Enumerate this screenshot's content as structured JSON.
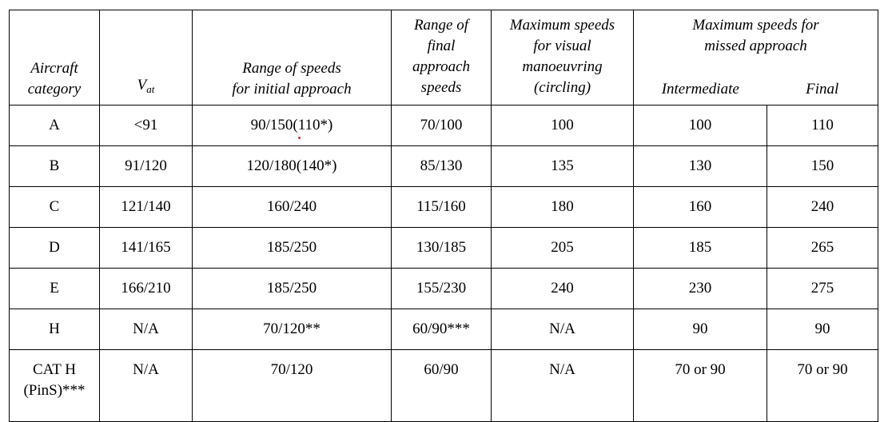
{
  "headers": {
    "aircraft_category": [
      "Aircraft",
      "category"
    ],
    "vat_main": "V",
    "vat_sub": "at",
    "initial_approach": [
      "Range of speeds",
      "for initial approach"
    ],
    "final_approach": [
      "Range of",
      "final",
      "approach",
      "speeds"
    ],
    "visual_manoeuvring": [
      "Maximum speeds",
      "for visual",
      "manoeuvring",
      "(circling)"
    ],
    "missed_approach": [
      "Maximum speeds for",
      "missed approach"
    ],
    "intermediate": "Intermediate",
    "final": "Final"
  },
  "rows": [
    {
      "category": "A",
      "vat": "<91",
      "initial": "90/150(110*)",
      "final_approach": "70/100",
      "visual": "100",
      "intermediate": "100",
      "final": "110"
    },
    {
      "category": "B",
      "vat": "91/120",
      "initial": "120/180(140*)",
      "final_approach": "85/130",
      "visual": "135",
      "intermediate": "130",
      "final": "150"
    },
    {
      "category": "C",
      "vat": "121/140",
      "initial": "160/240",
      "final_approach": "115/160",
      "visual": "180",
      "intermediate": "160",
      "final": "240"
    },
    {
      "category": "D",
      "vat": "141/165",
      "initial": "185/250",
      "final_approach": "130/185",
      "visual": "205",
      "intermediate": "185",
      "final": "265"
    },
    {
      "category": "E",
      "vat": "166/210",
      "initial": "185/250",
      "final_approach": "155/230",
      "visual": "240",
      "intermediate": "230",
      "final": "275"
    },
    {
      "category": "H",
      "vat": "N/A",
      "initial": "70/120**",
      "final_approach": "60/90***",
      "visual": "N/A",
      "intermediate": "90",
      "final": "90"
    },
    {
      "category": [
        "CAT H",
        "(PinS)***"
      ],
      "vat": "N/A",
      "initial": "70/120",
      "final_approach": "60/90",
      "visual": "N/A",
      "intermediate": "70 or 90",
      "final": "70 or 90"
    }
  ],
  "colors": {
    "border": "#000000",
    "text": "#000000",
    "marker_dot": "#d32f2f"
  }
}
